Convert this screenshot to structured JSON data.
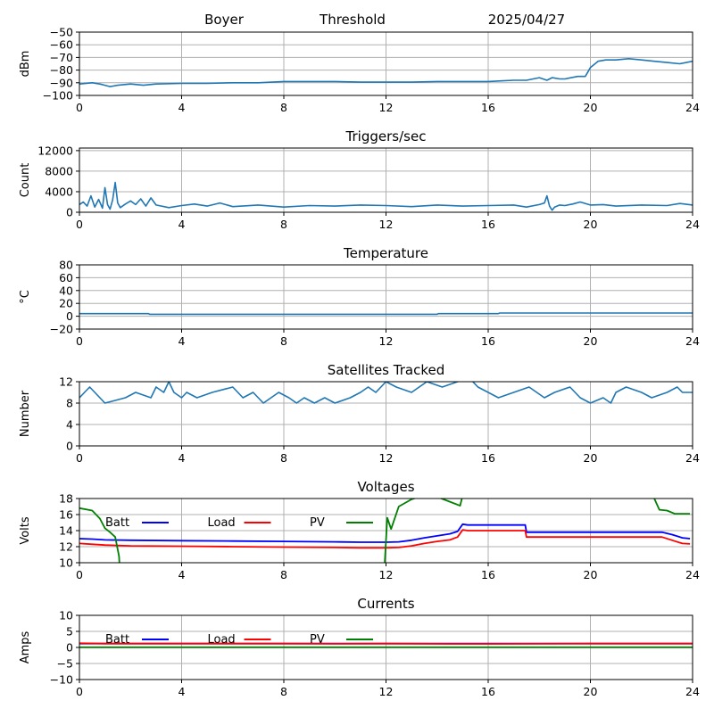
{
  "header": {
    "station": "Boyer",
    "kind": "Threshold",
    "date": "2025/04/27"
  },
  "legend_labels": {
    "batt": "Batt",
    "load": "Load",
    "pv": "PV"
  },
  "colors": {
    "series_default": "#1f77b4",
    "batt": "#0000ff",
    "load": "#ff0000",
    "pv": "#008000",
    "grid": "#b0b0b0"
  },
  "chart_data": [
    {
      "type": "line",
      "title": "",
      "ylabel": "dBm",
      "xlim": [
        0,
        24
      ],
      "ylim": [
        -100,
        -50
      ],
      "xticks": [
        0,
        4,
        8,
        12,
        16,
        20,
        24
      ],
      "yticks": [
        -100,
        -90,
        -80,
        -70,
        -60,
        -50
      ],
      "grid": true,
      "series": [
        {
          "x": [
            0,
            0.5,
            0.8,
            1.0,
            1.2,
            1.5,
            2,
            2.5,
            3,
            4,
            5,
            6,
            7,
            8,
            8.5,
            9,
            10,
            11,
            12,
            13,
            14,
            15,
            16,
            16.5,
            17,
            17.5,
            18,
            18.3,
            18.5,
            18.8,
            19,
            19.5,
            19.8,
            20,
            20.3,
            20.6,
            21,
            21.5,
            22,
            22.5,
            23,
            23.5,
            24
          ],
          "y": [
            -91,
            -90,
            -91,
            -92,
            -93,
            -92,
            -91,
            -92,
            -91,
            -90.5,
            -90.5,
            -90,
            -90,
            -89,
            -89,
            -89,
            -89,
            -89.5,
            -89.5,
            -89.5,
            -89,
            -89,
            -89,
            -88.5,
            -88,
            -88,
            -86,
            -88,
            -86,
            -87,
            -87,
            -85,
            -85,
            -78,
            -73,
            -72,
            -72,
            -71,
            -72,
            -73,
            -74,
            -75,
            -73
          ]
        }
      ]
    },
    {
      "type": "line",
      "title": "Triggers/sec",
      "ylabel": "Count",
      "xlim": [
        0,
        24
      ],
      "ylim": [
        0,
        12500
      ],
      "xticks": [
        0,
        4,
        8,
        12,
        16,
        20,
        24
      ],
      "yticks": [
        0,
        4000,
        8000,
        12000
      ],
      "grid": true,
      "series": [
        {
          "x": [
            0,
            0.15,
            0.3,
            0.45,
            0.6,
            0.75,
            0.9,
            1.0,
            1.1,
            1.2,
            1.3,
            1.4,
            1.5,
            1.6,
            1.8,
            2.0,
            2.2,
            2.4,
            2.6,
            2.8,
            3.0,
            3.5,
            4,
            4.5,
            5,
            5.5,
            6,
            7,
            8,
            9,
            10,
            11,
            12,
            13,
            14,
            15,
            16,
            17,
            17.5,
            18,
            18.2,
            18.3,
            18.4,
            18.5,
            18.6,
            18.8,
            19,
            19.3,
            19.6,
            20,
            20.5,
            21,
            22,
            23,
            23.5,
            24
          ],
          "y": [
            1500,
            2000,
            1200,
            3200,
            1000,
            2500,
            800,
            4800,
            1500,
            600,
            2400,
            5800,
            1800,
            900,
            1600,
            2200,
            1500,
            2600,
            1200,
            2800,
            1400,
            900,
            1300,
            1600,
            1200,
            1800,
            1100,
            1400,
            1000,
            1300,
            1200,
            1400,
            1300,
            1100,
            1400,
            1200,
            1300,
            1400,
            1000,
            1500,
            1800,
            3200,
            1200,
            400,
            1000,
            1400,
            1300,
            1600,
            2000,
            1400,
            1500,
            1200,
            1400,
            1300,
            1700,
            1400
          ]
        }
      ]
    },
    {
      "type": "line",
      "title": "Temperature",
      "ylabel": "°C",
      "xlim": [
        0,
        24
      ],
      "ylim": [
        -20,
        80
      ],
      "xticks": [
        0,
        4,
        8,
        12,
        16,
        20,
        24
      ],
      "yticks": [
        -20,
        0,
        20,
        40,
        60,
        80
      ],
      "grid": true,
      "series": [
        {
          "x": [
            0,
            2.7,
            2.75,
            14,
            14.05,
            16.4,
            16.45,
            24
          ],
          "y": [
            4,
            4,
            3,
            3,
            4,
            4,
            5,
            5
          ]
        }
      ]
    },
    {
      "type": "line",
      "title": "Satellites Tracked",
      "ylabel": "Number",
      "xlim": [
        0,
        24
      ],
      "ylim": [
        0,
        12
      ],
      "xticks": [
        0,
        4,
        8,
        12,
        16,
        20,
        24
      ],
      "yticks": [
        0,
        4,
        8,
        12
      ],
      "grid": true,
      "series": [
        {
          "x": [
            0,
            0.2,
            0.4,
            0.8,
            1.0,
            1.8,
            2.2,
            2.8,
            3.0,
            3.3,
            3.5,
            3.7,
            4,
            4.2,
            4.6,
            5.2,
            6.0,
            6.4,
            6.8,
            7.2,
            7.5,
            7.8,
            8.2,
            8.5,
            8.8,
            9.2,
            9.6,
            10.0,
            10.6,
            11.0,
            11.3,
            11.6,
            12.0,
            12.4,
            13.0,
            13.6,
            14.2,
            14.8,
            15.2,
            15.6,
            16.0,
            16.4,
            17.0,
            17.6,
            18.2,
            18.6,
            19.2,
            19.6,
            20.0,
            20.5,
            20.8,
            21.0,
            21.4,
            22.0,
            22.4,
            23.0,
            23.4,
            23.6,
            24
          ],
          "y": [
            9,
            10,
            11,
            9,
            8,
            9,
            10,
            9,
            11,
            10,
            12,
            10,
            9,
            10,
            9,
            10,
            11,
            9,
            10,
            8,
            9,
            10,
            9,
            8,
            9,
            8,
            9,
            8,
            9,
            10,
            11,
            10,
            12,
            11,
            10,
            12,
            11,
            12,
            13,
            11,
            10,
            9,
            10,
            11,
            9,
            10,
            11,
            9,
            8,
            9,
            8,
            10,
            11,
            10,
            9,
            10,
            11,
            10,
            10
          ]
        }
      ]
    },
    {
      "type": "line",
      "title": "Voltages",
      "ylabel": "Volts",
      "xlim": [
        0,
        24
      ],
      "ylim": [
        10,
        18
      ],
      "xticks": [
        0,
        4,
        8,
        12,
        16,
        20,
        24
      ],
      "yticks": [
        10,
        12,
        14,
        16,
        18
      ],
      "grid": true,
      "series": [
        {
          "name": "Batt",
          "color": "#0000ff",
          "x": [
            0,
            0.5,
            1,
            2,
            4,
            6,
            8,
            10,
            11,
            12,
            12.5,
            13,
            13.5,
            14,
            14.5,
            14.8,
            15.0,
            15.2,
            16,
            17,
            17.45,
            17.5,
            18,
            20,
            22,
            22.8,
            23.2,
            23.6,
            23.9
          ],
          "y": [
            13.0,
            12.95,
            12.85,
            12.8,
            12.75,
            12.7,
            12.65,
            12.6,
            12.55,
            12.55,
            12.6,
            12.8,
            13.1,
            13.35,
            13.6,
            13.9,
            14.8,
            14.7,
            14.7,
            14.7,
            14.7,
            13.8,
            13.8,
            13.8,
            13.8,
            13.8,
            13.5,
            13.1,
            13.0
          ]
        },
        {
          "name": "Load",
          "color": "#ff0000",
          "x": [
            0,
            0.5,
            1,
            2,
            4,
            6,
            8,
            10,
            11,
            12,
            12.5,
            13,
            13.5,
            14,
            14.5,
            14.8,
            15.0,
            15.2,
            16,
            17,
            17.45,
            17.5,
            18,
            20,
            22,
            22.8,
            23.2,
            23.6,
            23.9
          ],
          "y": [
            12.4,
            12.3,
            12.2,
            12.1,
            12.05,
            12.0,
            11.95,
            11.9,
            11.85,
            11.85,
            11.9,
            12.1,
            12.4,
            12.65,
            12.85,
            13.2,
            14.1,
            14.0,
            14.0,
            14.0,
            14.0,
            13.2,
            13.2,
            13.2,
            13.2,
            13.2,
            12.8,
            12.4,
            12.35
          ]
        },
        {
          "name": "PV",
          "color": "#008000",
          "x": [
            0,
            0.5,
            0.8,
            1.0,
            1.2,
            1.4,
            1.55,
            1.65,
            11.85,
            11.95,
            12.05,
            12.2,
            12.5,
            13.0,
            13.5,
            14.0,
            14.5,
            14.9,
            15.05,
            22.3,
            22.5,
            22.7,
            23.0,
            23.3,
            23.9
          ],
          "y": [
            16.8,
            16.5,
            15.5,
            14.3,
            13.8,
            13.2,
            10.8,
            5.0,
            5.0,
            10.0,
            15.6,
            14.2,
            17.0,
            17.9,
            18.4,
            18.2,
            17.6,
            17.1,
            19.0,
            19.0,
            18.0,
            16.6,
            16.5,
            16.1,
            16.1
          ]
        }
      ]
    },
    {
      "type": "line",
      "title": "Currents",
      "ylabel": "Amps",
      "xlim": [
        0,
        24
      ],
      "ylim": [
        -10,
        10
      ],
      "xticks": [
        0,
        4,
        8,
        12,
        16,
        20,
        24
      ],
      "yticks": [
        -10,
        -5,
        0,
        5,
        10
      ],
      "grid": true,
      "series": [
        {
          "name": "Batt",
          "color": "#0000ff",
          "x": [
            0,
            24
          ],
          "y": [
            1.2,
            1.2
          ]
        },
        {
          "name": "Load",
          "color": "#ff0000",
          "x": [
            0,
            1,
            4,
            8,
            10,
            12,
            15,
            16,
            20,
            24
          ],
          "y": [
            1.3,
            1.2,
            1.2,
            1.2,
            1.15,
            1.2,
            1.1,
            1.1,
            1.2,
            1.2
          ]
        },
        {
          "name": "PV",
          "color": "#008000",
          "x": [
            0,
            24
          ],
          "y": [
            0.05,
            0.05
          ]
        }
      ]
    }
  ]
}
